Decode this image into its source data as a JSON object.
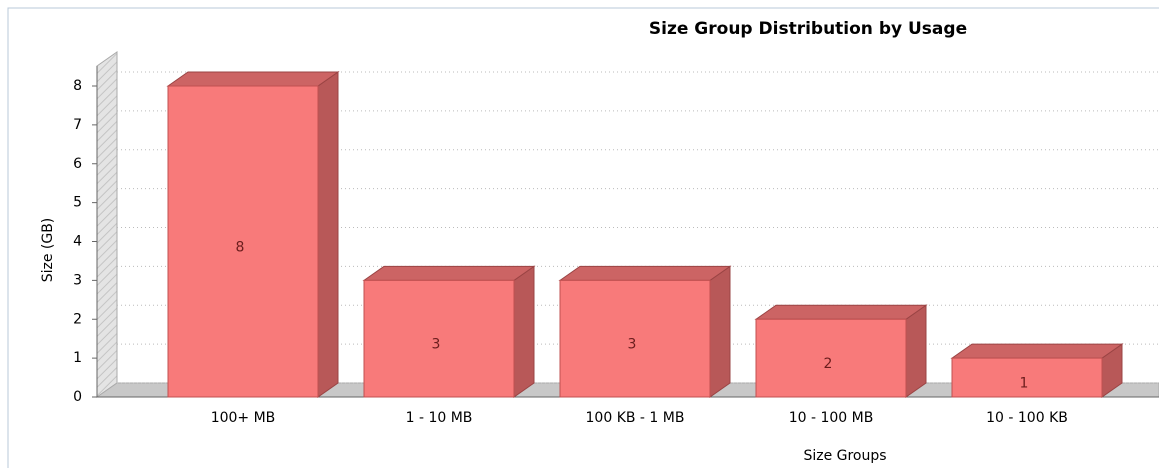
{
  "chart_data": {
    "type": "bar",
    "title": "Size Group Distribution by Usage",
    "x_label": "Size Groups",
    "y_label": "Size (GB)",
    "categories": [
      "100+ MB",
      "1 - 10 MB",
      "100 KB - 1 MB",
      "10 - 100 MB",
      "10 - 100 KB"
    ],
    "values": [
      8,
      3,
      3,
      2,
      1
    ],
    "color": "#f87a7a",
    "ylim": [
      0,
      8
    ],
    "yticks": [
      0,
      1,
      2,
      3,
      4,
      5,
      6,
      7,
      8
    ],
    "grid": true
  }
}
